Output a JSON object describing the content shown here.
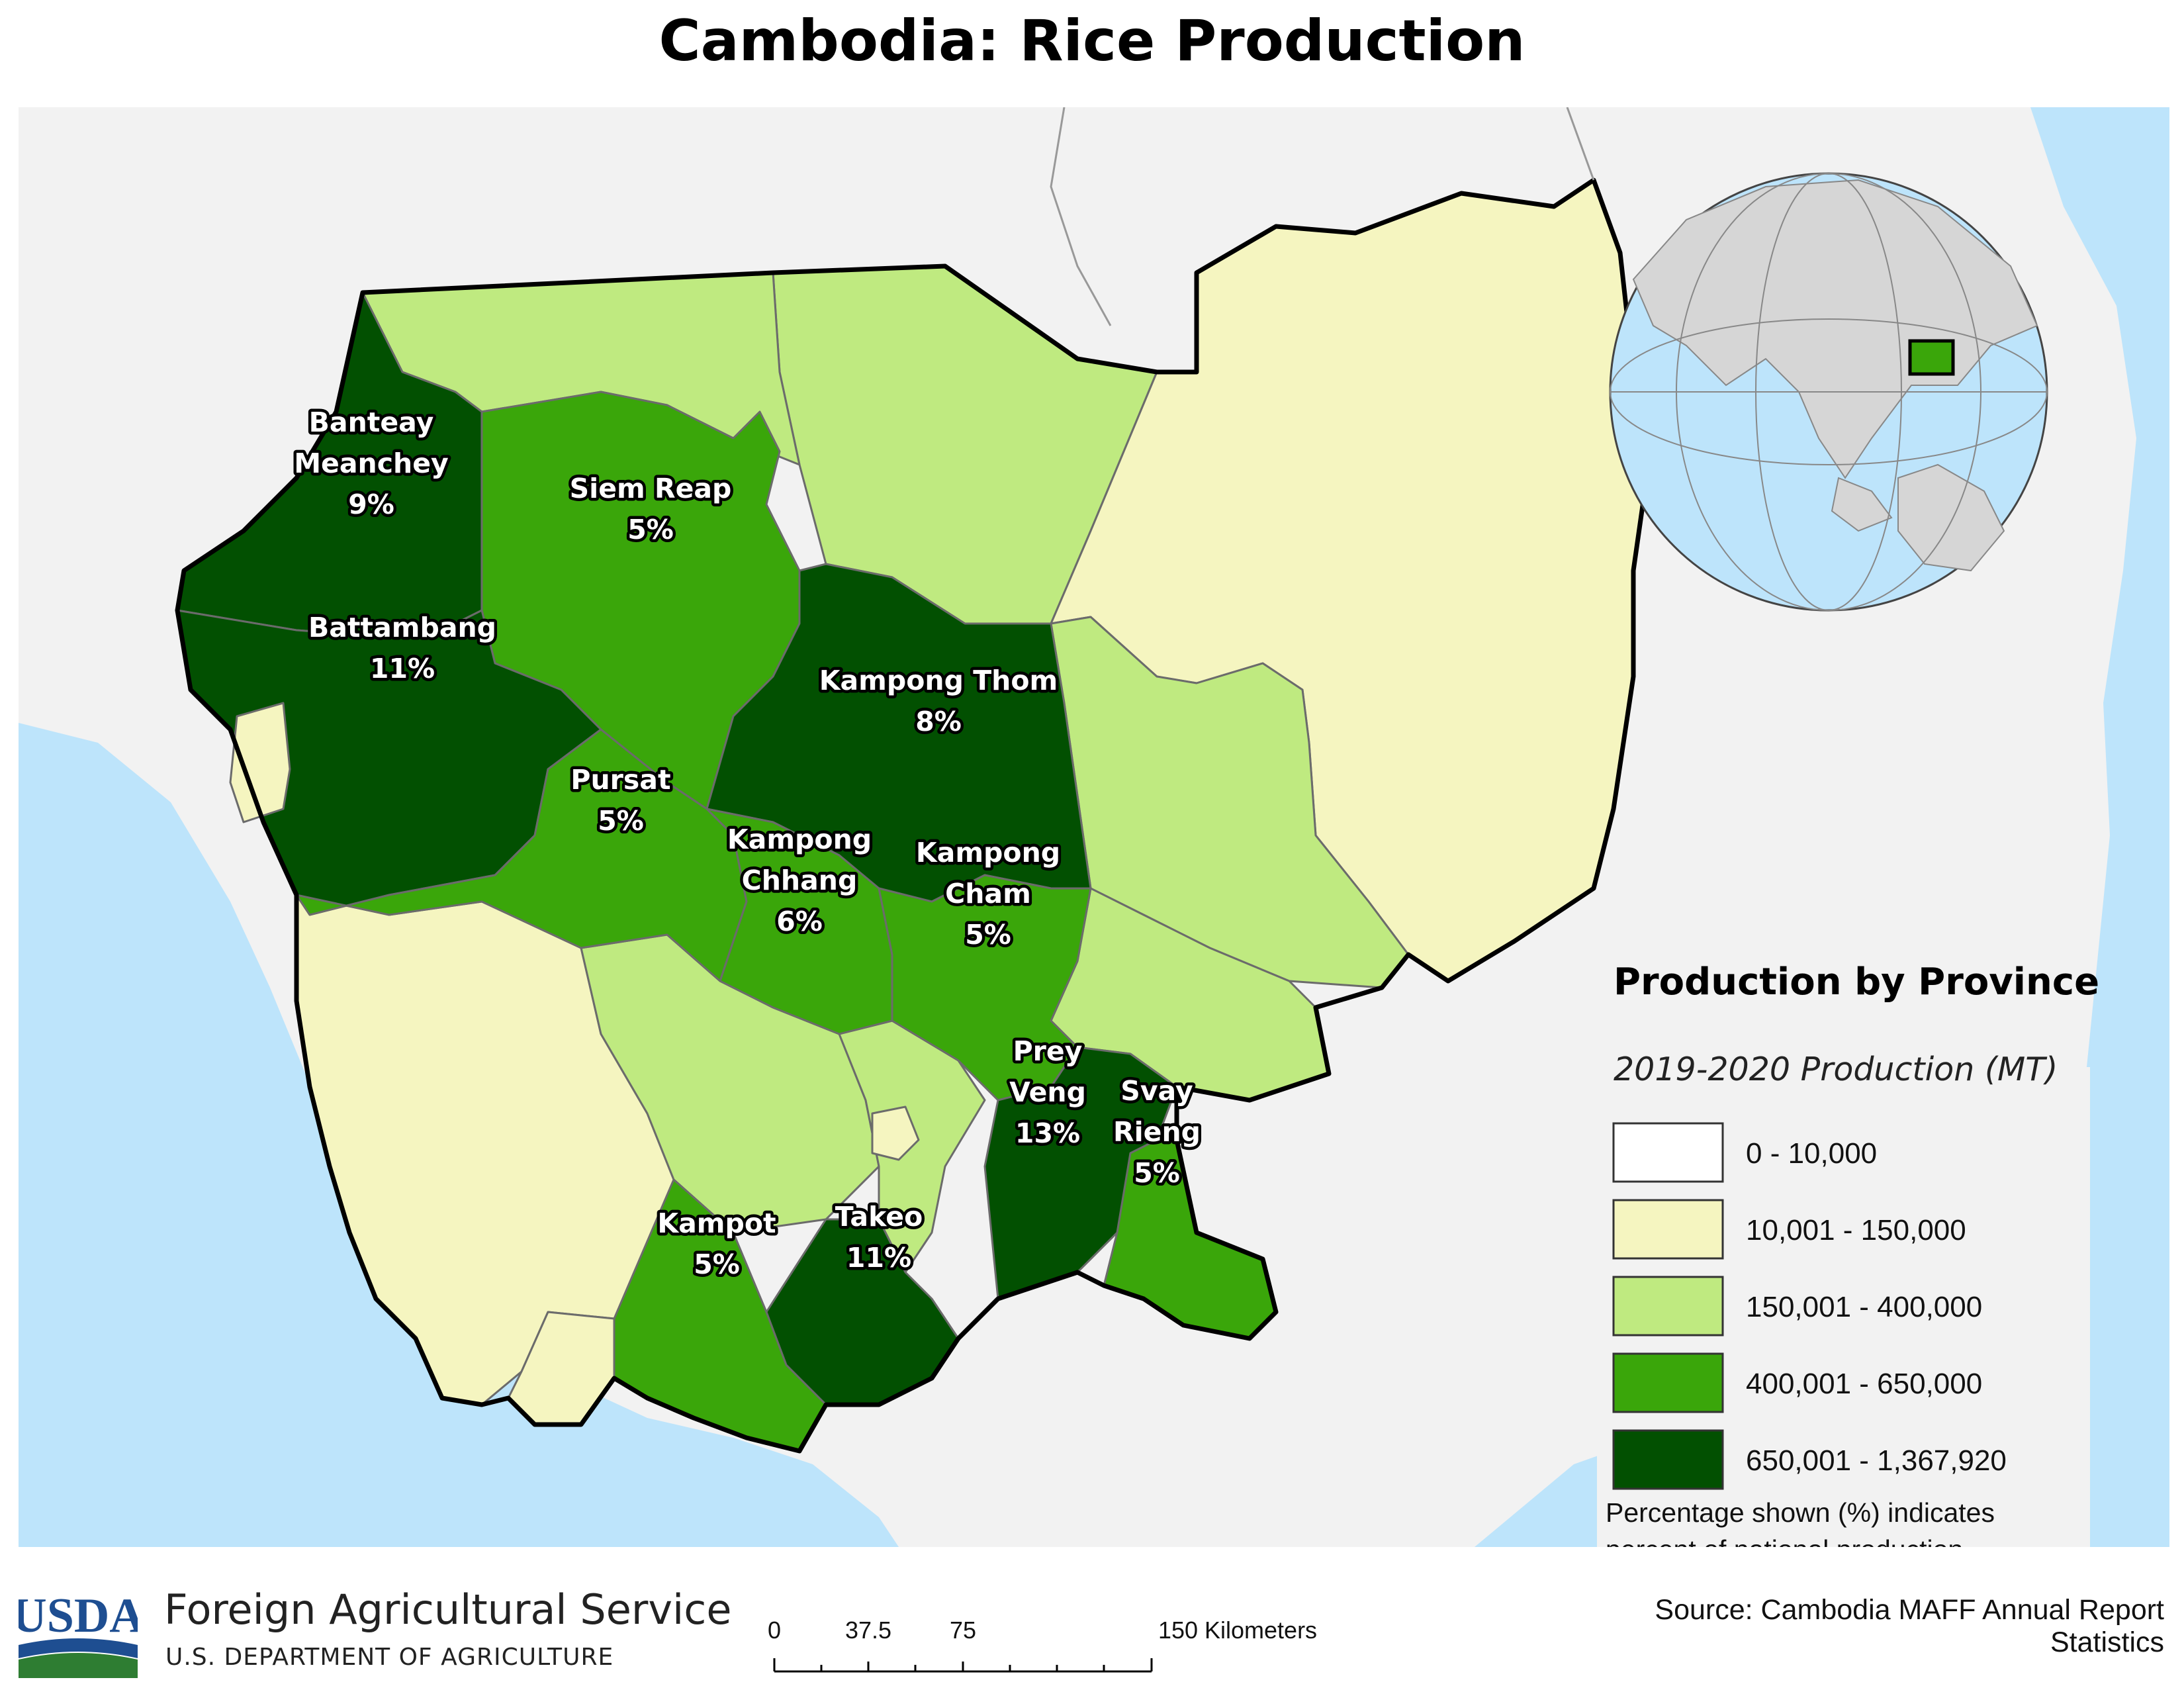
{
  "title": "Cambodia: Rice Production",
  "legend": {
    "title": "Production by Province",
    "subtitle": "2019-2020 Production (MT)",
    "classes": [
      {
        "label": "0 - 10,000",
        "color": "#ffffff"
      },
      {
        "label": "10,001 - 150,000",
        "color": "#f5f5c0"
      },
      {
        "label": "150,001 - 400,000",
        "color": "#bfea80"
      },
      {
        "label": "400,001 - 650,000",
        "color": "#3aa60a"
      },
      {
        "label": "650,001 - 1,367,920",
        "color": "#025001"
      }
    ],
    "note_line1": "Percentage shown (%) indicates",
    "note_line2": "percent of national production"
  },
  "provinces": [
    {
      "id": "banteay-meanchey",
      "name1": "Banteay",
      "name2": "Meanchey",
      "pct": "9%",
      "class": 4
    },
    {
      "id": "siem-reap",
      "name1": "Siem Reap",
      "name2": "",
      "pct": "5%",
      "class": 3
    },
    {
      "id": "battambang",
      "name1": "Battambang",
      "name2": "",
      "pct": "11%",
      "class": 4
    },
    {
      "id": "kampong-thom",
      "name1": "Kampong Thom",
      "name2": "",
      "pct": "8%",
      "class": 4
    },
    {
      "id": "pursat",
      "name1": "Pursat",
      "name2": "",
      "pct": "5%",
      "class": 3
    },
    {
      "id": "kampong-chhang",
      "name1": "Kampong",
      "name2": "Chhang",
      "pct": "6%",
      "class": 3
    },
    {
      "id": "kampong-cham",
      "name1": "Kampong",
      "name2": "Cham",
      "pct": "5%",
      "class": 3
    },
    {
      "id": "prey-veng",
      "name1": "Prey",
      "name2": "Veng",
      "pct": "13%",
      "class": 4
    },
    {
      "id": "svay-rieng",
      "name1": "Svay",
      "name2": "Rieng",
      "pct": "5%",
      "class": 3
    },
    {
      "id": "kampot",
      "name1": "Kampot",
      "name2": "",
      "pct": "5%",
      "class": 3
    },
    {
      "id": "takeo",
      "name1": "Takeo",
      "name2": "",
      "pct": "11%",
      "class": 4
    }
  ],
  "colors": {
    "sea": "#bde4fb",
    "land": "#f2f2f2",
    "border": "#000000",
    "usda_blue": "#1e4e91",
    "usda_green": "#2e7d32"
  },
  "scalebar": {
    "ticks": [
      "0",
      "37.5",
      "75",
      "150 Kilometers"
    ]
  },
  "footer": {
    "usda": "USDA",
    "agency": "Foreign Agricultural Service",
    "department": "U.S. DEPARTMENT OF AGRICULTURE",
    "source": "Source: Cambodia MAFF Annual Report Statistics"
  }
}
